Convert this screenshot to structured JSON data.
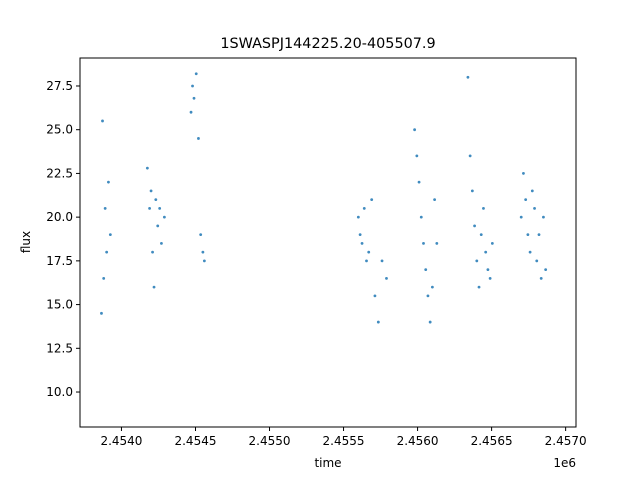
{
  "chart_data": {
    "type": "scatter",
    "title": "1SWASPJ144225.20-405507.9",
    "xlabel": "time",
    "ylabel": "flux",
    "x_offset_label": "1e6",
    "x_scale": 1000000,
    "xlim": [
      2453720,
      2457070
    ],
    "ylim": [
      8.0,
      29.1
    ],
    "x_ticks": [
      {
        "value": 2454000,
        "label": "2.4540"
      },
      {
        "value": 2454500,
        "label": "2.4545"
      },
      {
        "value": 2455000,
        "label": "2.4550"
      },
      {
        "value": 2455500,
        "label": "2.4555"
      },
      {
        "value": 2456000,
        "label": "2.4560"
      },
      {
        "value": 2456500,
        "label": "2.4565"
      },
      {
        "value": 2457000,
        "label": "2.4570"
      }
    ],
    "y_ticks": [
      {
        "value": 10.0,
        "label": "10.0"
      },
      {
        "value": 12.5,
        "label": "12.5"
      },
      {
        "value": 15.0,
        "label": "15.0"
      },
      {
        "value": 17.5,
        "label": "17.5"
      },
      {
        "value": 20.0,
        "label": "20.0"
      },
      {
        "value": 22.5,
        "label": "22.5"
      },
      {
        "value": 25.0,
        "label": "25.0"
      },
      {
        "value": 27.5,
        "label": "27.5"
      }
    ],
    "grid": false,
    "point_color": "#1f77b4",
    "series": [
      {
        "x": [
          2453865,
          2453872,
          2453880,
          2453890,
          2453900,
          2453912,
          2453925,
          2454175,
          2454190,
          2454200,
          2454210,
          2454220,
          2454232,
          2454245,
          2454258,
          2454270,
          2454290,
          2454470,
          2454480,
          2454490,
          2454505,
          2454520,
          2454535,
          2454550,
          2454560,
          2455600,
          2455612,
          2455625,
          2455640,
          2455655,
          2455670,
          2455690,
          2455712,
          2455735,
          2455760,
          2455790,
          2455980,
          2455995,
          2456010,
          2456025,
          2456040,
          2456055,
          2456070,
          2456085,
          2456100,
          2456115,
          2456130,
          2456340,
          2456355,
          2456370,
          2456385,
          2456400,
          2456415,
          2456430,
          2456445,
          2456460,
          2456475,
          2456490,
          2456505,
          2456700,
          2456715,
          2456730,
          2456745,
          2456760,
          2456775,
          2456790,
          2456805,
          2456820,
          2456835,
          2456850,
          2456865
        ],
        "y": [
          14.5,
          25.5,
          16.5,
          20.5,
          18.0,
          22.0,
          19.0,
          22.8,
          20.5,
          21.5,
          18.0,
          16.0,
          21.0,
          19.5,
          20.5,
          18.5,
          20.0,
          26.0,
          27.5,
          26.8,
          28.2,
          24.5,
          19.0,
          18.0,
          17.5,
          20.0,
          19.0,
          18.5,
          20.5,
          17.5,
          18.0,
          21.0,
          15.5,
          14.0,
          17.5,
          16.5,
          25.0,
          23.5,
          22.0,
          20.0,
          18.5,
          17.0,
          15.5,
          14.0,
          16.0,
          21.0,
          18.5,
          28.0,
          23.5,
          21.5,
          19.5,
          17.5,
          16.0,
          19.0,
          20.5,
          18.0,
          17.0,
          16.5,
          18.5,
          20.0,
          22.5,
          21.0,
          19.0,
          18.0,
          21.5,
          20.5,
          17.5,
          19.0,
          16.5,
          20.0,
          17.0
        ]
      }
    ]
  }
}
